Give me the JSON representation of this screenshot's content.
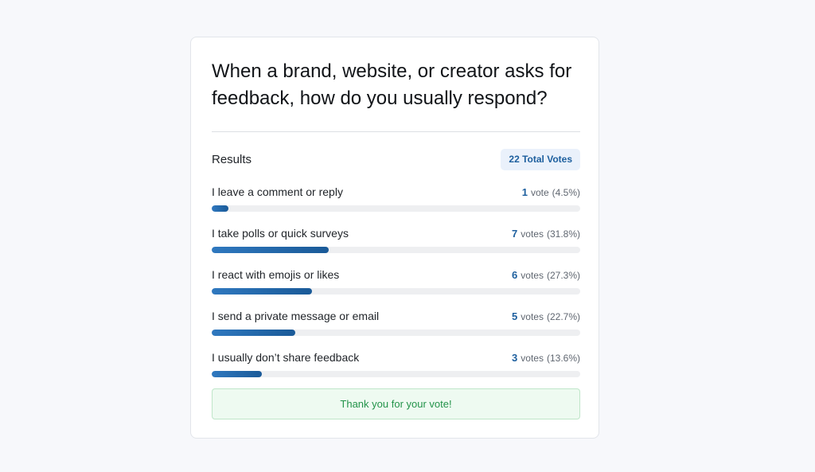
{
  "poll": {
    "question": "When a brand, website, or creator asks for feedback, how do you usually respond?",
    "results_label": "Results",
    "total_votes_label": "22 Total Votes",
    "options": [
      {
        "label": "I leave a comment or reply",
        "count": "1",
        "unit": "vote",
        "pct": "(4.5%)",
        "share": 0.045
      },
      {
        "label": "I take polls or quick surveys",
        "count": "7",
        "unit": "votes",
        "pct": "(31.8%)",
        "share": 0.318
      },
      {
        "label": "I react with emojis or likes",
        "count": "6",
        "unit": "votes",
        "pct": "(27.3%)",
        "share": 0.273
      },
      {
        "label": "I send a private message or email",
        "count": "5",
        "unit": "votes",
        "pct": "(22.7%)",
        "share": 0.227
      },
      {
        "label": "I usually don’t share feedback",
        "count": "3",
        "unit": "votes",
        "pct": "(13.6%)",
        "share": 0.136
      }
    ],
    "thank_you": "Thank you for your vote!"
  },
  "colors": {
    "accent": "#1d5f9e",
    "bar_start": "#2f78bf",
    "bar_end": "#1a5a98",
    "success_text": "#23934a",
    "success_bg": "#eefaf1"
  }
}
